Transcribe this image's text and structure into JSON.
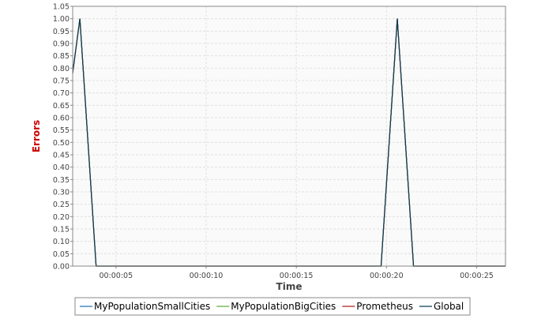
{
  "chart_data": {
    "type": "line",
    "title": "",
    "xlabel": "Time",
    "ylabel": "Errors",
    "xlim": [
      "00:00:02.6",
      "00:00:26.6"
    ],
    "ylim": [
      0,
      1.05
    ],
    "grid": true,
    "legend_placement": "bottom",
    "x_ticks": [
      "00:00:05",
      "00:00:10",
      "00:00:15",
      "00:00:20",
      "00:00:25"
    ],
    "y_ticks": [
      "0.00",
      "0.05",
      "0.10",
      "0.15",
      "0.20",
      "0.25",
      "0.30",
      "0.35",
      "0.40",
      "0.45",
      "0.50",
      "0.55",
      "0.60",
      "0.65",
      "0.70",
      "0.75",
      "0.80",
      "0.85",
      "0.90",
      "0.95",
      "1.00",
      "1.05"
    ],
    "series": [
      {
        "name": "MyPopulationSmallCities",
        "color": "#1f6eb0",
        "x": [
          "00:00:02.6",
          "00:00:03.0",
          "00:00:03.9",
          "00:00:19.7",
          "00:00:20.6",
          "00:00:21.5",
          "00:00:26.6"
        ],
        "y": [
          0.78,
          1.0,
          0.0,
          0.0,
          1.0,
          0.0,
          0.0
        ]
      },
      {
        "name": "MyPopulationBigCities",
        "color": "#5fae3c",
        "x": [
          "00:00:02.6",
          "00:00:03.0",
          "00:00:03.9",
          "00:00:19.7",
          "00:00:20.6",
          "00:00:21.5",
          "00:00:26.6"
        ],
        "y": [
          0.78,
          1.0,
          0.0,
          0.0,
          1.0,
          0.0,
          0.0
        ]
      },
      {
        "name": "Prometheus",
        "color": "#b02020",
        "x": [
          "00:00:02.6",
          "00:00:03.0",
          "00:00:03.9",
          "00:00:19.7",
          "00:00:20.6",
          "00:00:21.5",
          "00:00:26.6"
        ],
        "y": [
          0.78,
          1.0,
          0.0,
          0.0,
          1.0,
          0.0,
          0.0
        ]
      },
      {
        "name": "Global",
        "color": "#0d3d55",
        "x": [
          "00:00:02.6",
          "00:00:03.0",
          "00:00:03.9",
          "00:00:19.7",
          "00:00:20.6",
          "00:00:21.5",
          "00:00:26.6"
        ],
        "y": [
          0.78,
          1.0,
          0.0,
          0.0,
          1.0,
          0.0,
          0.0
        ]
      }
    ]
  },
  "colors": {
    "plot_background": "#fafafa",
    "grid": "#dcdcdc",
    "axis_title_y": "#cc0000",
    "axis_title_x": "#444444"
  }
}
